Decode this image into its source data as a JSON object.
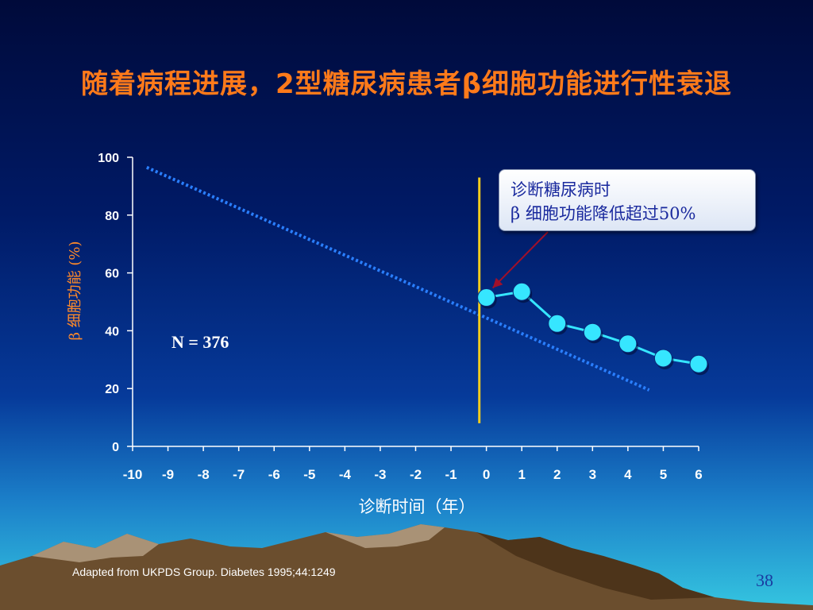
{
  "slide": {
    "title": "随着病程进展，2型糖尿病患者β细胞功能进行性衰退",
    "source": "Adapted from UKPDS Group. Diabetes 1995;44:1249",
    "page_number": "38"
  },
  "colors": {
    "title": "#ff7a1a",
    "data_line": "#36e6ff",
    "trend_line": "#2a7fff",
    "diagnosis_line": "#f2cc1c",
    "arrow": "#a0102a",
    "callout_text": "#1a2a9e"
  },
  "chart_data": {
    "type": "line",
    "xlabel": "诊断时间（年）",
    "ylabel": "β 细胞功能 (%)",
    "xlim": [
      -10,
      6
    ],
    "ylim": [
      0,
      100
    ],
    "x_ticks": [
      "-10",
      "-9",
      "-8",
      "-7",
      "-6",
      "-5",
      "-4",
      "-3",
      "-2",
      "-1",
      "0",
      "1",
      "2",
      "3",
      "4",
      "5",
      "6"
    ],
    "y_ticks": [
      "0",
      "20",
      "40",
      "60",
      "80",
      "100"
    ],
    "series": [
      {
        "x": [
          0,
          1,
          2,
          3,
          4,
          5,
          6
        ],
        "values": [
          51.5,
          53.5,
          42.5,
          39.5,
          35.5,
          30.5,
          28.5
        ],
        "style": "solid-markers"
      }
    ],
    "trend_line": {
      "style": "dotted",
      "x": [
        -9.6,
        4.6
      ],
      "values": [
        96.5,
        19.5
      ]
    },
    "vertical_line": {
      "x": -0.2,
      "y_range": [
        8,
        93
      ]
    },
    "annotations": {
      "sample_size": "N = 376",
      "callout_line1": "诊断糖尿病时",
      "callout_line2": "β 细胞功能降低超过50%"
    },
    "grid": false
  }
}
